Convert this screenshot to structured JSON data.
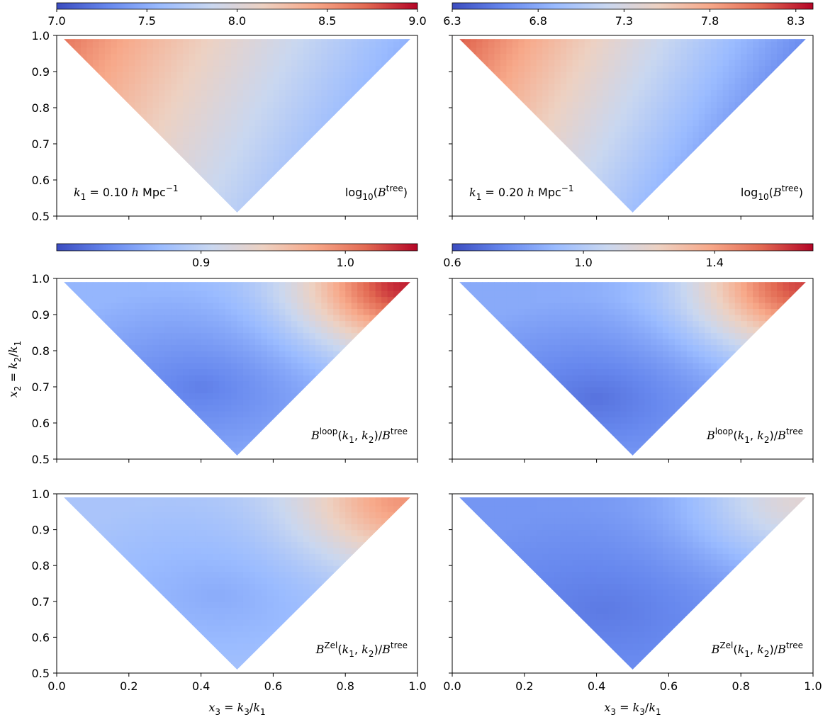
{
  "figure": {
    "xlabel": "x3 = k3/k1",
    "ylabel": "x2 = k2/k1",
    "colormap": [
      "#3b4cc0",
      "#6788ee",
      "#9abbff",
      "#c9d7f0",
      "#edd1c2",
      "#f7a889",
      "#e26952",
      "#b40426"
    ]
  },
  "chart_data": [
    {
      "type": "heatmap",
      "panel": "tree-k1-0.10",
      "domain": "triangle x2 >= 1 - x3, x2 >= x3, x2 <= 1",
      "xlim": [
        0.0,
        1.0
      ],
      "ylim": [
        0.5,
        1.0
      ],
      "xticks": [
        "0.0",
        "0.2",
        "0.4",
        "0.6",
        "0.8",
        "1.0"
      ],
      "yticks": [
        "0.5",
        "0.6",
        "0.7",
        "0.8",
        "0.9",
        "1.0"
      ],
      "colorbar": {
        "range": [
          7.0,
          9.0
        ],
        "ticks": [
          7.0,
          7.5,
          8.0,
          8.5,
          9.0
        ],
        "tick_labels": [
          "7.0",
          "7.5",
          "8.0",
          "8.5",
          "9.0"
        ]
      },
      "annotation": "k1 = 0.10 h Mpc^-1",
      "quantity": "log10(B^tree)",
      "field": {
        "kind": "tree",
        "vmin": 7.0,
        "vmax": 9.0,
        "value_at_left": 8.7,
        "value_at_right": 7.5
      }
    },
    {
      "type": "heatmap",
      "panel": "tree-k1-0.20",
      "xlim": [
        0.0,
        1.0
      ],
      "ylim": [
        0.5,
        1.0
      ],
      "xticks": [
        "0.0",
        "0.2",
        "0.4",
        "0.6",
        "0.8",
        "1.0"
      ],
      "yticks": [],
      "colorbar": {
        "range": [
          6.3,
          8.4
        ],
        "ticks": [
          6.3,
          6.8,
          7.3,
          7.8,
          8.3
        ],
        "tick_labels": [
          "6.3",
          "6.8",
          "7.3",
          "7.8",
          "8.3"
        ]
      },
      "annotation": "k1 = 0.20 h Mpc^-1",
      "quantity": "log10(B^tree)",
      "field": {
        "kind": "tree",
        "vmin": 6.3,
        "vmax": 8.4,
        "value_at_left": 8.2,
        "value_at_right": 6.6
      }
    },
    {
      "type": "heatmap",
      "panel": "loop-k1-0.10",
      "xlim": [
        0.0,
        1.0
      ],
      "ylim": [
        0.5,
        1.0
      ],
      "xticks": [
        "0.0",
        "0.2",
        "0.4",
        "0.6",
        "0.8",
        "1.0"
      ],
      "yticks": [
        "0.5",
        "0.6",
        "0.7",
        "0.8",
        "0.9",
        "1.0"
      ],
      "colorbar": {
        "range": [
          0.8,
          1.05
        ],
        "ticks": [
          0.9,
          1.0
        ],
        "tick_labels": [
          "0.9",
          "1.0"
        ]
      },
      "quantity": "B^loop(k1,k2)/B^tree",
      "field": {
        "kind": "loop",
        "vmin": 0.8,
        "vmax": 1.05,
        "min_value": 0.83,
        "min_at": [
          0.4,
          0.7
        ],
        "max_value": 1.04,
        "max_at": [
          0.98,
          0.99
        ]
      }
    },
    {
      "type": "heatmap",
      "panel": "loop-k1-0.20",
      "xlim": [
        0.0,
        1.0
      ],
      "ylim": [
        0.5,
        1.0
      ],
      "xticks": [
        "0.0",
        "0.2",
        "0.4",
        "0.6",
        "0.8",
        "1.0"
      ],
      "yticks": [],
      "colorbar": {
        "range": [
          0.6,
          1.7
        ],
        "ticks": [
          0.6,
          1.0,
          1.4
        ],
        "tick_labels": [
          "0.6",
          "1.0",
          "1.4"
        ]
      },
      "quantity": "B^loop(k1,k2)/B^tree",
      "field": {
        "kind": "loop",
        "vmin": 0.6,
        "vmax": 1.7,
        "min_value": 0.7,
        "min_at": [
          0.4,
          0.67
        ],
        "max_value": 1.6,
        "max_at": [
          0.98,
          0.99
        ]
      }
    },
    {
      "type": "heatmap",
      "panel": "zel-k1-0.10",
      "xlim": [
        0.0,
        1.0
      ],
      "ylim": [
        0.5,
        1.0
      ],
      "xticks": [
        "0.0",
        "0.2",
        "0.4",
        "0.6",
        "0.8",
        "1.0"
      ],
      "yticks": [
        "0.5",
        "0.6",
        "0.7",
        "0.8",
        "0.9",
        "1.0"
      ],
      "quantity": "B^Zel(k1,k2)/B^tree",
      "field": {
        "kind": "loop",
        "vmin": 0.8,
        "vmax": 1.05,
        "min_value": 0.86,
        "min_at": [
          0.45,
          0.72
        ],
        "max_value": 0.99,
        "max_at": [
          0.98,
          0.99
        ]
      }
    },
    {
      "type": "heatmap",
      "panel": "zel-k1-0.20",
      "xlim": [
        0.0,
        1.0
      ],
      "ylim": [
        0.5,
        1.0
      ],
      "xticks": [
        "0.0",
        "0.2",
        "0.4",
        "0.6",
        "0.8",
        "1.0"
      ],
      "yticks": [],
      "quantity": "B^Zel(k1,k2)/B^tree",
      "field": {
        "kind": "loop",
        "vmin": 0.6,
        "vmax": 1.7,
        "min_value": 0.72,
        "min_at": [
          0.42,
          0.68
        ],
        "max_value": 1.17,
        "max_at": [
          0.98,
          0.99
        ]
      }
    }
  ]
}
